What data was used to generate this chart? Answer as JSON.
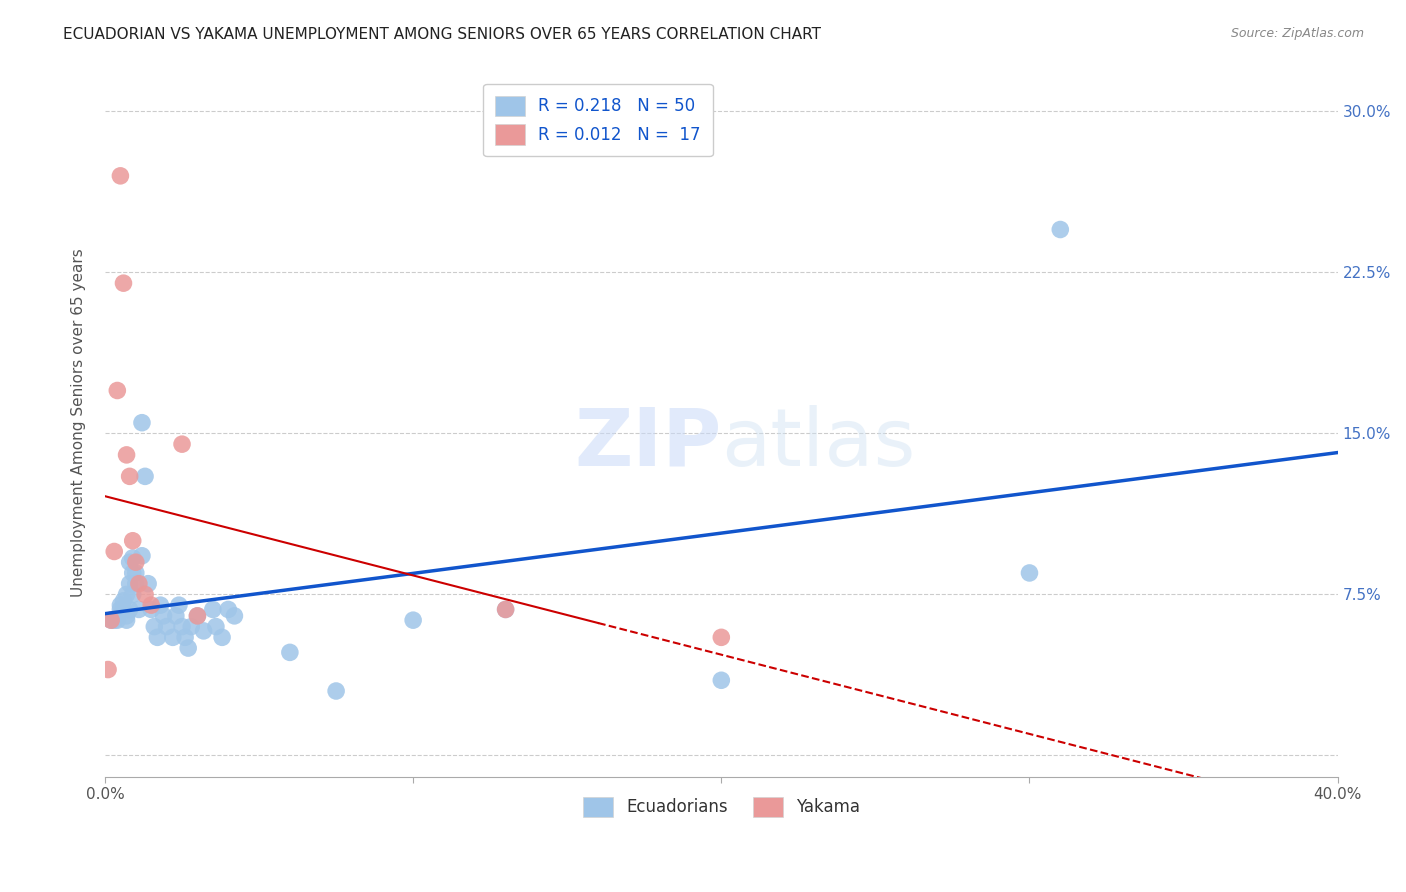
{
  "title": "ECUADORIAN VS YAKAMA UNEMPLOYMENT AMONG SENIORS OVER 65 YEARS CORRELATION CHART",
  "source": "Source: ZipAtlas.com",
  "xlabel": "",
  "ylabel": "Unemployment Among Seniors over 65 years",
  "xlim": [
    0.0,
    0.4
  ],
  "ylim": [
    -0.01,
    0.32
  ],
  "xticks": [
    0.0,
    0.1,
    0.2,
    0.3,
    0.4
  ],
  "xticklabels_show": [
    "0.0%",
    "",
    "",
    "",
    "40.0%"
  ],
  "yticks": [
    0.0,
    0.075,
    0.15,
    0.225,
    0.3
  ],
  "yticklabels_right": [
    "",
    "7.5%",
    "15.0%",
    "22.5%",
    "30.0%"
  ],
  "watermark": "ZIPatlas",
  "blue_R": "0.218",
  "blue_N": "50",
  "pink_R": "0.012",
  "pink_N": "17",
  "blue_color": "#9fc5e8",
  "pink_color": "#ea9999",
  "blue_line_color": "#1155cc",
  "pink_line_color": "#cc0000",
  "blue_scatter": [
    [
      0.002,
      0.063
    ],
    [
      0.003,
      0.063
    ],
    [
      0.004,
      0.063
    ],
    [
      0.005,
      0.068
    ],
    [
      0.005,
      0.07
    ],
    [
      0.006,
      0.072
    ],
    [
      0.006,
      0.068
    ],
    [
      0.007,
      0.065
    ],
    [
      0.007,
      0.063
    ],
    [
      0.007,
      0.075
    ],
    [
      0.008,
      0.08
    ],
    [
      0.008,
      0.09
    ],
    [
      0.008,
      0.068
    ],
    [
      0.009,
      0.092
    ],
    [
      0.009,
      0.085
    ],
    [
      0.009,
      0.075
    ],
    [
      0.01,
      0.085
    ],
    [
      0.01,
      0.08
    ],
    [
      0.011,
      0.068
    ],
    [
      0.012,
      0.093
    ],
    [
      0.012,
      0.155
    ],
    [
      0.013,
      0.13
    ],
    [
      0.014,
      0.08
    ],
    [
      0.015,
      0.068
    ],
    [
      0.016,
      0.06
    ],
    [
      0.017,
      0.055
    ],
    [
      0.018,
      0.07
    ],
    [
      0.019,
      0.065
    ],
    [
      0.02,
      0.06
    ],
    [
      0.022,
      0.055
    ],
    [
      0.023,
      0.065
    ],
    [
      0.024,
      0.07
    ],
    [
      0.025,
      0.06
    ],
    [
      0.026,
      0.055
    ],
    [
      0.027,
      0.05
    ],
    [
      0.028,
      0.06
    ],
    [
      0.03,
      0.065
    ],
    [
      0.032,
      0.058
    ],
    [
      0.035,
      0.068
    ],
    [
      0.036,
      0.06
    ],
    [
      0.038,
      0.055
    ],
    [
      0.04,
      0.068
    ],
    [
      0.042,
      0.065
    ],
    [
      0.06,
      0.048
    ],
    [
      0.075,
      0.03
    ],
    [
      0.1,
      0.063
    ],
    [
      0.13,
      0.068
    ],
    [
      0.2,
      0.035
    ],
    [
      0.3,
      0.085
    ],
    [
      0.31,
      0.245
    ]
  ],
  "pink_scatter": [
    [
      0.001,
      0.04
    ],
    [
      0.002,
      0.063
    ],
    [
      0.003,
      0.095
    ],
    [
      0.004,
      0.17
    ],
    [
      0.005,
      0.27
    ],
    [
      0.006,
      0.22
    ],
    [
      0.007,
      0.14
    ],
    [
      0.008,
      0.13
    ],
    [
      0.009,
      0.1
    ],
    [
      0.01,
      0.09
    ],
    [
      0.011,
      0.08
    ],
    [
      0.013,
      0.075
    ],
    [
      0.015,
      0.07
    ],
    [
      0.025,
      0.145
    ],
    [
      0.03,
      0.065
    ],
    [
      0.13,
      0.068
    ],
    [
      0.2,
      0.055
    ]
  ],
  "background_color": "#ffffff",
  "grid_color": "#cccccc"
}
